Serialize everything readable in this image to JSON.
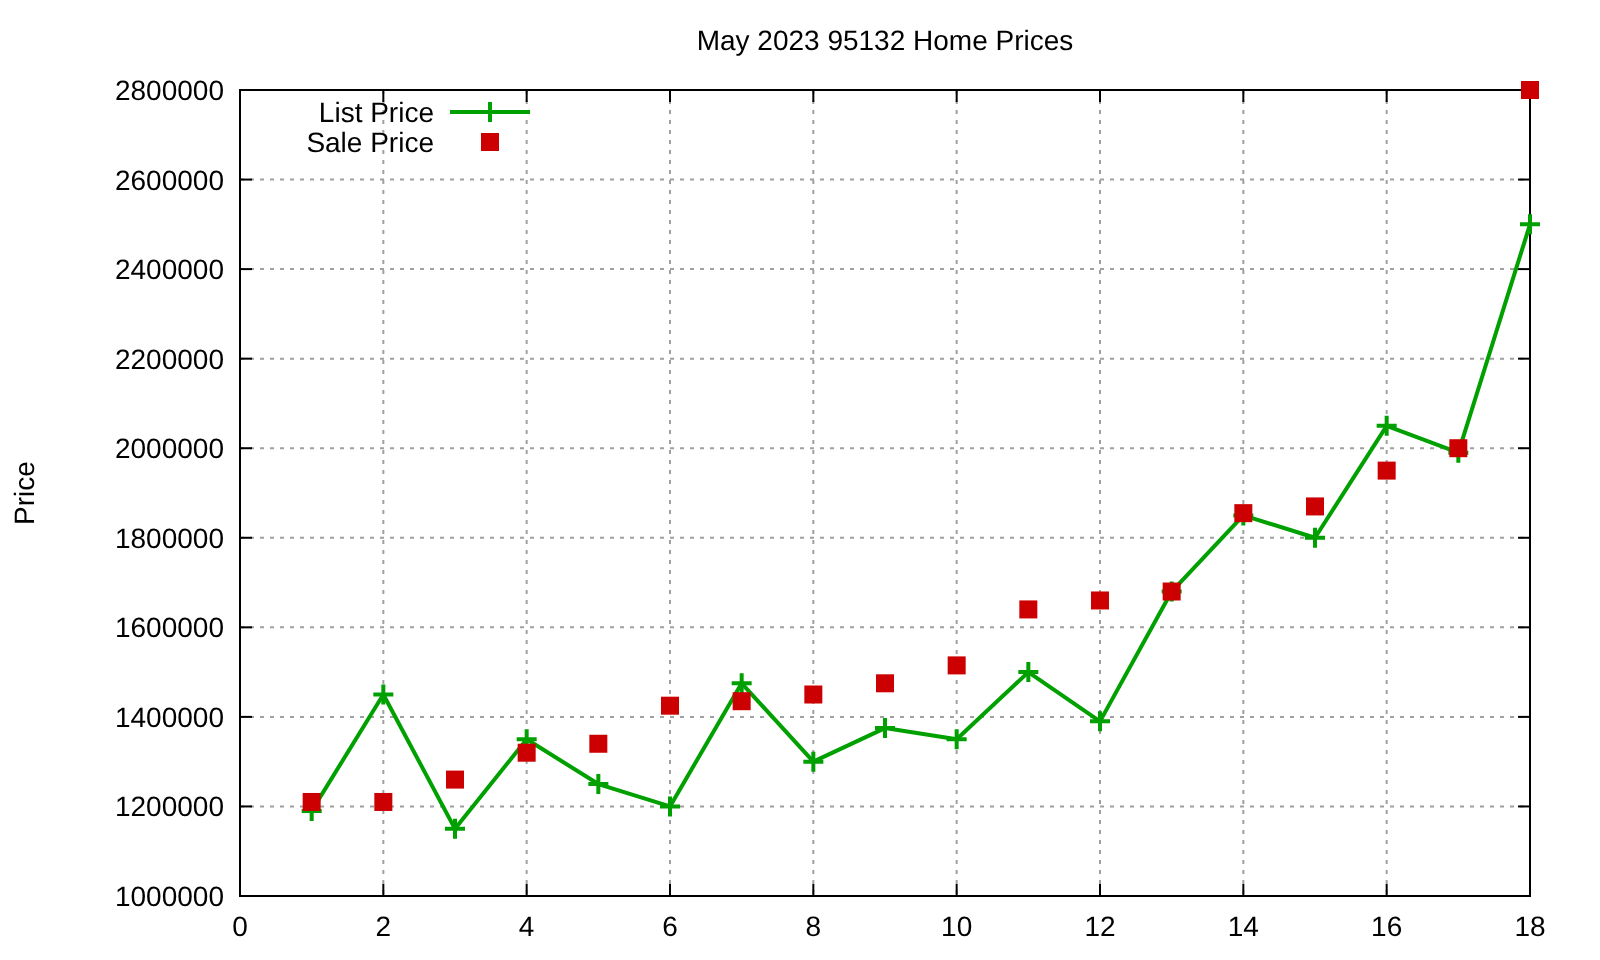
{
  "chart_data": {
    "type": "line",
    "title": "May 2023 95132 Home Prices",
    "ylabel": "Price",
    "x": [
      1,
      2,
      3,
      4,
      5,
      6,
      7,
      8,
      9,
      10,
      11,
      12,
      13,
      14,
      15,
      16,
      17,
      18
    ],
    "series": [
      {
        "name": "List Price",
        "color": "#00a000",
        "marker": "cross",
        "values": [
          1190000,
          1450000,
          1150000,
          1350000,
          1250000,
          1200000,
          1475000,
          1300000,
          1375000,
          1350000,
          1500000,
          1390000,
          1680000,
          1850000,
          1800000,
          2050000,
          1990000,
          2500000
        ]
      },
      {
        "name": "Sale Price",
        "type": "scatter",
        "color": "#cc0000",
        "marker": "square",
        "values": [
          1210000,
          1210000,
          1260000,
          1320000,
          1340000,
          1425000,
          1435000,
          1450000,
          1475000,
          1515000,
          1640000,
          1660000,
          1680000,
          1855000,
          1870000,
          1950000,
          2000000,
          2800000
        ]
      }
    ],
    "xlim": [
      0,
      18
    ],
    "xticks": [
      0,
      2,
      4,
      6,
      8,
      10,
      12,
      14,
      16,
      18
    ],
    "ylim": [
      1000000,
      2800000
    ],
    "yticks": [
      1000000,
      1200000,
      1400000,
      1600000,
      1800000,
      2000000,
      2200000,
      2400000,
      2600000,
      2800000
    ],
    "grid": true,
    "legend": "top left"
  }
}
